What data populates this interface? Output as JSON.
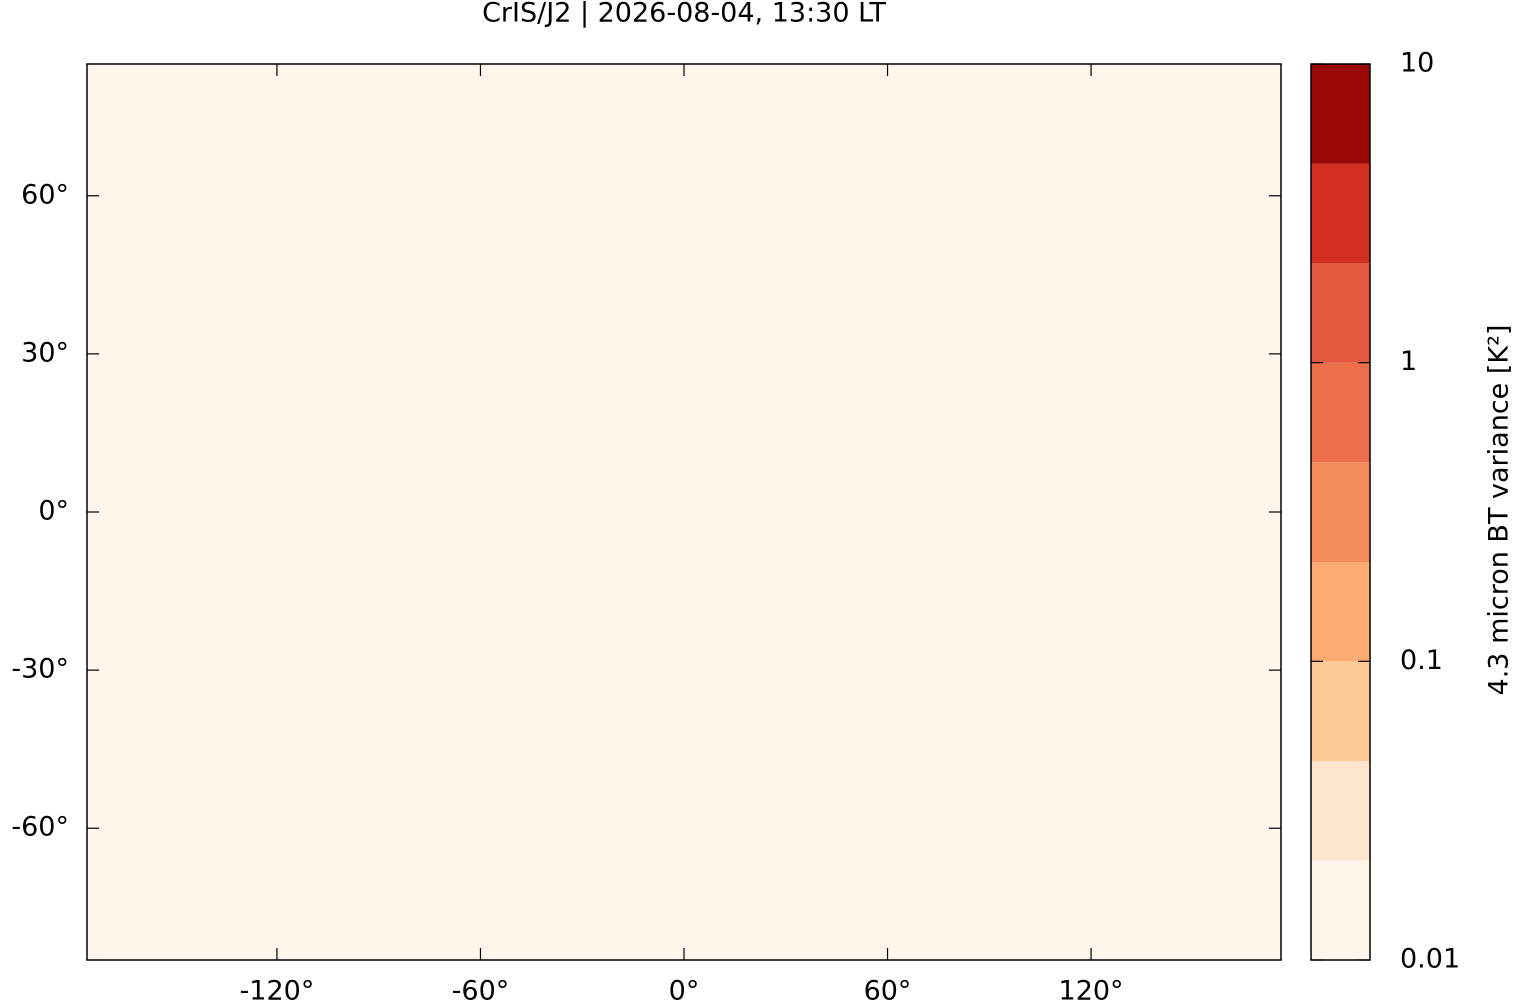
{
  "chart_data": {
    "type": "map",
    "title": "CrIS/J2 | 2026-08-04, 13:30 LT",
    "xlim": [
      -176,
      176
    ],
    "ylim": [
      -85,
      85
    ],
    "xticks": [
      {
        "value": -120,
        "label": "-120°"
      },
      {
        "value": -60,
        "label": "-60°"
      },
      {
        "value": 0,
        "label": "0°"
      },
      {
        "value": 60,
        "label": "60°"
      },
      {
        "value": 120,
        "label": "120°"
      }
    ],
    "yticks": [
      {
        "value": 60,
        "label": "60°"
      },
      {
        "value": 30,
        "label": "30°"
      },
      {
        "value": 0,
        "label": "0°"
      },
      {
        "value": -30,
        "label": "-30°"
      },
      {
        "value": -60,
        "label": "-60°"
      }
    ],
    "colorbar": {
      "label": "4.3 micron BT variance [K²]",
      "scale": "log",
      "lim": [
        0.01,
        10
      ],
      "ticks": [
        0.01,
        0.1,
        1,
        10
      ],
      "levels": [
        0.01,
        0.0215,
        0.0464,
        0.1,
        0.215,
        0.464,
        1,
        2.15,
        4.64,
        10
      ],
      "colors": [
        "#fff5eb",
        "#fde6cd",
        "#fdc994",
        "#fcab72",
        "#f58e5c",
        "#ec6f4a",
        "#e45a40",
        "#d02e1f",
        "#9a0707"
      ]
    }
  }
}
